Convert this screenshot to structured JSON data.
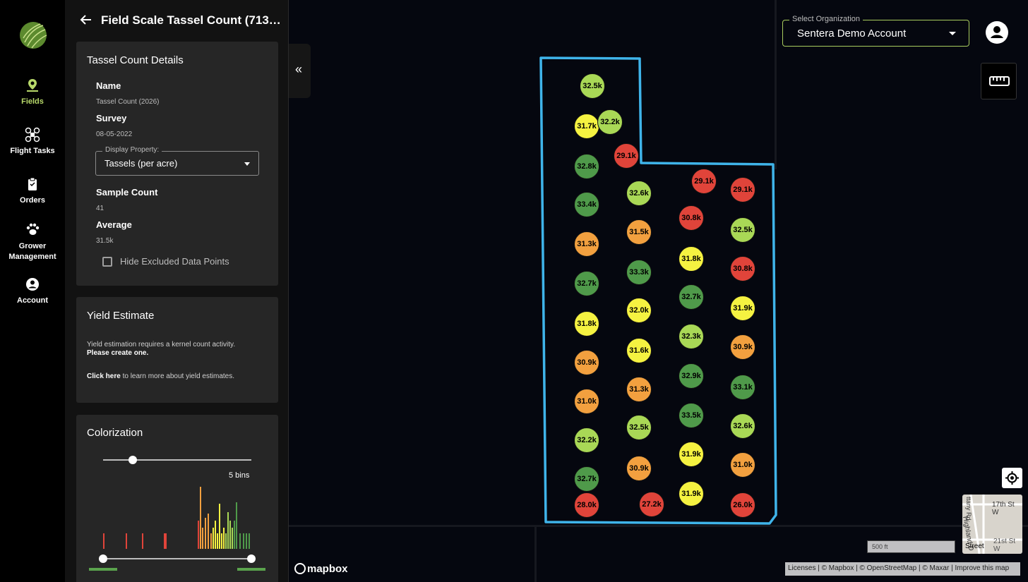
{
  "nav": {
    "items": [
      {
        "label": "Fields",
        "icon": "map-pin-icon",
        "active": true
      },
      {
        "label": "Flight Tasks",
        "icon": "drone-icon",
        "active": false
      },
      {
        "label": "Orders",
        "icon": "clipboard-icon",
        "active": false
      },
      {
        "label": "Grower Management",
        "icon": "paw-icon",
        "active": false
      },
      {
        "label": "Account",
        "icon": "account-circle-icon",
        "active": false
      }
    ]
  },
  "panel": {
    "title": "Field Scale Tassel Count (71302-...",
    "details": {
      "heading": "Tassel Count Details",
      "name_label": "Name",
      "name_value": "Tassel Count (2026)",
      "survey_label": "Survey",
      "survey_value": "08-05-2022",
      "display_property_label": "Display Property:",
      "display_property_value": "Tassels (per acre)",
      "sample_count_label": "Sample Count",
      "sample_count_value": "41",
      "average_label": "Average",
      "average_value": "31.5k",
      "hide_excluded_label": "Hide Excluded Data Points",
      "hide_excluded_checked": false
    },
    "yield": {
      "heading": "Yield Estimate",
      "line1": "Yield estimation requires a kernel count activity.",
      "line2": "Please create one.",
      "link_text": "Click here",
      "line3": " to learn more about yield estimates."
    },
    "colorization": {
      "heading": "Colorization",
      "bins_label": "5 bins",
      "bins_slider_fraction": 0.2
    }
  },
  "map": {
    "collapse_icon": "«",
    "org_label": "Select Organization",
    "org_value": "Sentera Demo Account",
    "scale_label": "500 ft",
    "attribution": "Licenses | © Mapbox | © OpenStreetMap | © Maxar | Improve this map",
    "mapbox_logo": "mapbox",
    "minimap_label": "Street",
    "minimap_streets": [
      "17th St W",
      "Highland D",
      "21st St W",
      "ttany Rd"
    ],
    "colors": {
      "field_outline": "#3fb4ea",
      "accent": "#a9cc5e",
      "red": "#e0443a",
      "orange": "#f2a03f",
      "yellow": "#f5f241",
      "lightgreen": "#a9d856",
      "green": "#4f9a4a"
    },
    "markers": [
      {
        "value": "32.5k",
        "color": "lightgreen"
      },
      {
        "value": "31.7k",
        "color": "yellow"
      },
      {
        "value": "32.2k",
        "color": "lightgreen"
      },
      {
        "value": "29.1k",
        "color": "red"
      },
      {
        "value": "32.8k",
        "color": "green"
      },
      {
        "value": "33.4k",
        "color": "green"
      },
      {
        "value": "31.3k",
        "color": "orange"
      },
      {
        "value": "32.7k",
        "color": "green"
      },
      {
        "value": "31.8k",
        "color": "yellow"
      },
      {
        "value": "30.9k",
        "color": "orange"
      },
      {
        "value": "31.0k",
        "color": "orange"
      },
      {
        "value": "32.2k",
        "color": "lightgreen"
      },
      {
        "value": "32.7k",
        "color": "green"
      },
      {
        "value": "28.0k",
        "color": "red"
      },
      {
        "value": "32.6k",
        "color": "lightgreen"
      },
      {
        "value": "31.5k",
        "color": "orange"
      },
      {
        "value": "33.3k",
        "color": "green"
      },
      {
        "value": "32.0k",
        "color": "yellow"
      },
      {
        "value": "31.6k",
        "color": "yellow"
      },
      {
        "value": "31.3k",
        "color": "orange"
      },
      {
        "value": "32.5k",
        "color": "lightgreen"
      },
      {
        "value": "30.9k",
        "color": "orange"
      },
      {
        "value": "27.2k",
        "color": "red"
      },
      {
        "value": "29.1k",
        "color": "red"
      },
      {
        "value": "30.8k",
        "color": "red"
      },
      {
        "value": "31.8k",
        "color": "yellow"
      },
      {
        "value": "32.7k",
        "color": "green"
      },
      {
        "value": "32.3k",
        "color": "lightgreen"
      },
      {
        "value": "32.9k",
        "color": "green"
      },
      {
        "value": "33.5k",
        "color": "green"
      },
      {
        "value": "31.9k",
        "color": "yellow"
      },
      {
        "value": "31.9k",
        "color": "yellow"
      },
      {
        "value": "29.1k",
        "color": "red"
      },
      {
        "value": "32.5k",
        "color": "lightgreen"
      },
      {
        "value": "30.8k",
        "color": "red"
      },
      {
        "value": "31.9k",
        "color": "yellow"
      },
      {
        "value": "30.9k",
        "color": "orange"
      },
      {
        "value": "33.1k",
        "color": "green"
      },
      {
        "value": "32.6k",
        "color": "lightgreen"
      },
      {
        "value": "31.0k",
        "color": "orange"
      },
      {
        "value": "26.0k",
        "color": "red"
      }
    ]
  }
}
